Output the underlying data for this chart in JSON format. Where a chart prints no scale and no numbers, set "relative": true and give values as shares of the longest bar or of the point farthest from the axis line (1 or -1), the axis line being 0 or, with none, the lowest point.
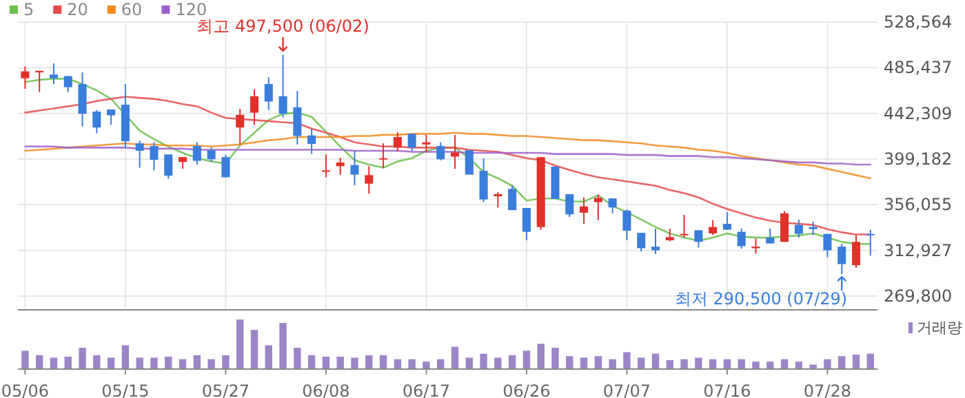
{
  "chart_data": [
    {
      "type": "candlestick",
      "categories": [
        null,
        null,
        null,
        null,
        null,
        null,
        null,
        null,
        null,
        null,
        null,
        null,
        null,
        null,
        null,
        null,
        null,
        null,
        null,
        null,
        null,
        null,
        null,
        null,
        null,
        null,
        null,
        null,
        null,
        null,
        null,
        null,
        null,
        null,
        null,
        null,
        null,
        null,
        null,
        null,
        null,
        null,
        null,
        null,
        null,
        null,
        null,
        null,
        null,
        null,
        null,
        null,
        null,
        null,
        null,
        null,
        null,
        null,
        null,
        null
      ],
      "ohlc": [
        [
          475500,
          486500,
          465500,
          482000
        ],
        [
          481000,
          482500,
          462500,
          482500
        ],
        [
          479000,
          489500,
          470000,
          475500
        ],
        [
          477500,
          477500,
          462500,
          467000
        ],
        [
          470000,
          481000,
          430000,
          442000
        ],
        [
          444000,
          445500,
          423500,
          429000
        ],
        [
          446000,
          446000,
          431500,
          440500
        ],
        [
          450500,
          470000,
          409500,
          416000
        ],
        [
          414000,
          416500,
          391000,
          407000
        ],
        [
          411500,
          415000,
          388500,
          398500
        ],
        [
          403500,
          403500,
          380500,
          383500
        ],
        [
          396500,
          401000,
          390000,
          401000
        ],
        [
          411500,
          415000,
          394000,
          397500
        ],
        [
          407500,
          410500,
          396500,
          399000
        ],
        [
          401000,
          403000,
          382000,
          382000
        ],
        [
          429000,
          446500,
          413000,
          441000
        ],
        [
          443000,
          465000,
          431500,
          458500
        ],
        [
          470000,
          476500,
          445500,
          453500
        ],
        [
          458500,
          497500,
          438500,
          442000
        ],
        [
          448000,
          463500,
          413000,
          421000
        ],
        [
          421500,
          428000,
          404000,
          413500
        ],
        [
          387500,
          403500,
          382000,
          388500
        ],
        [
          392500,
          400500,
          384500,
          396000
        ],
        [
          393500,
          407000,
          374500,
          384500
        ],
        [
          376000,
          392500,
          366500,
          384000
        ],
        [
          399000,
          414000,
          390500,
          400000
        ],
        [
          410000,
          424500,
          406500,
          420000
        ],
        [
          423000,
          423000,
          406500,
          410000
        ],
        [
          413000,
          422000,
          405500,
          415000
        ],
        [
          411500,
          415000,
          398000,
          399000
        ],
        [
          401500,
          422000,
          390000,
          405500
        ],
        [
          407500,
          407500,
          384500,
          384500
        ],
        [
          388000,
          400000,
          358500,
          361000
        ],
        [
          364000,
          368000,
          353500,
          366000
        ],
        [
          371000,
          374000,
          351000,
          351000
        ],
        [
          353000,
          353000,
          322500,
          330500
        ],
        [
          335000,
          401000,
          332500,
          401000
        ],
        [
          392000,
          392000,
          361500,
          361500
        ],
        [
          366000,
          366000,
          344500,
          347000
        ],
        [
          348500,
          363000,
          338000,
          354500
        ],
        [
          358500,
          365500,
          341500,
          362500
        ],
        [
          362000,
          362000,
          348000,
          353500
        ],
        [
          350500,
          351500,
          322500,
          331500
        ],
        [
          329500,
          329500,
          312000,
          315000
        ],
        [
          316500,
          333500,
          309500,
          313000
        ],
        [
          322500,
          333500,
          321500,
          325500
        ],
        [
          327500,
          346500,
          325000,
          328500
        ],
        [
          332000,
          332000,
          315500,
          321000
        ],
        [
          329000,
          341500,
          327500,
          335000
        ],
        [
          338000,
          349000,
          332500,
          332500
        ],
        [
          330500,
          333500,
          314500,
          317000
        ],
        [
          315000,
          324000,
          310000,
          316500
        ],
        [
          325000,
          333500,
          319500,
          319500
        ],
        [
          321000,
          350000,
          321000,
          348000
        ],
        [
          337000,
          342000,
          325000,
          328500
        ],
        [
          335000,
          340000,
          327500,
          333000
        ],
        [
          328500,
          328500,
          306500,
          313000
        ],
        [
          316500,
          319000,
          290500,
          300000
        ],
        [
          299000,
          327500,
          296500,
          321000
        ],
        [
          328500,
          332500,
          308000,
          327500
        ]
      ],
      "colors": [
        "#e0312b",
        "#e0312b",
        "#3a7ddc",
        "#3a7ddc",
        "#3a7ddc",
        "#3a7ddc",
        "#3a7ddc",
        "#3a7ddc",
        "#3a7ddc",
        "#3a7ddc",
        "#3a7ddc",
        "#e0312b",
        "#3a7ddc",
        "#3a7ddc",
        "#3a7ddc",
        "#e0312b",
        "#e0312b",
        "#3a7ddc",
        "#3a7ddc",
        "#3a7ddc",
        "#3a7ddc",
        "#e0312b",
        "#e0312b",
        "#3a7ddc",
        "#e0312b",
        "#e0312b",
        "#e0312b",
        "#3a7ddc",
        "#e0312b",
        "#3a7ddc",
        "#e0312b",
        "#3a7ddc",
        "#3a7ddc",
        "#e0312b",
        "#3a7ddc",
        "#3a7ddc",
        "#e0312b",
        "#3a7ddc",
        "#3a7ddc",
        "#e0312b",
        "#e0312b",
        "#3a7ddc",
        "#3a7ddc",
        "#3a7ddc",
        "#3a7ddc",
        "#e0312b",
        "#e0312b",
        "#3a7ddc",
        "#e0312b",
        "#3a7ddc",
        "#3a7ddc",
        "#e0312b",
        "#3a7ddc",
        "#e0312b",
        "#3a7ddc",
        "#3a7ddc",
        "#3a7ddc",
        "#3a7ddc",
        "#e0312b",
        "#3a7ddc"
      ],
      "series": [
        {
          "name": "5",
          "type": "line",
          "color": "#6abf4b",
          "values": [
            472000,
            474000,
            475000,
            475000,
            470000,
            464000,
            456000,
            441000,
            426000,
            418000,
            411000,
            405000,
            400000,
            397000,
            395000,
            412000,
            424000,
            436000,
            442000,
            443000,
            439000,
            425000,
            411000,
            398000,
            394000,
            391000,
            397000,
            400000,
            407000,
            410000,
            410000,
            400000,
            387000,
            381000,
            374000,
            360000,
            362000,
            362000,
            359000,
            359000,
            365000,
            355000,
            349000,
            342000,
            335000,
            329000,
            325000,
            322000,
            325000,
            329000,
            326000,
            325000,
            325000,
            326000,
            327000,
            329000,
            325000,
            321000,
            319000,
            319000
          ]
        },
        {
          "name": "20",
          "type": "line",
          "color": "#e8494b",
          "values": [
            443000,
            445000,
            447000,
            449000,
            451000,
            454000,
            456000,
            458000,
            457000,
            456000,
            454000,
            451000,
            449000,
            443000,
            438000,
            437000,
            436000,
            435000,
            434000,
            433000,
            428000,
            424000,
            420000,
            415000,
            413000,
            411000,
            411000,
            410000,
            410000,
            410000,
            410000,
            408000,
            407000,
            406000,
            403000,
            400000,
            398000,
            393000,
            389000,
            385000,
            382000,
            380000,
            378000,
            376000,
            374000,
            370000,
            367000,
            363000,
            357000,
            352000,
            348000,
            344000,
            341000,
            339000,
            338000,
            337000,
            333000,
            330000,
            328000,
            328000
          ]
        },
        {
          "name": "60",
          "type": "line",
          "color": "#f28a1e",
          "values": [
            407000,
            408000,
            409000,
            410000,
            411000,
            412000,
            413000,
            414000,
            413000,
            413000,
            412000,
            412000,
            412000,
            411000,
            412000,
            413000,
            415000,
            417000,
            418000,
            420000,
            420000,
            420000,
            420000,
            421000,
            421000,
            422000,
            422000,
            423000,
            423000,
            423000,
            424000,
            423000,
            423000,
            422000,
            421000,
            421000,
            420000,
            419000,
            418000,
            417000,
            417000,
            416000,
            415000,
            414000,
            412000,
            411000,
            410000,
            408000,
            407000,
            405000,
            402000,
            400000,
            398000,
            396000,
            394000,
            393000,
            390000,
            387000,
            384000,
            381000
          ]
        },
        {
          "name": "120",
          "type": "line",
          "color": "#9c5fc9",
          "values": [
            411000,
            411000,
            411000,
            410000,
            410000,
            410000,
            410000,
            410000,
            409000,
            409000,
            409000,
            409000,
            408000,
            408000,
            408000,
            408000,
            408000,
            408000,
            408000,
            408000,
            408000,
            408000,
            408000,
            407000,
            407000,
            407000,
            407000,
            406000,
            406000,
            406000,
            406000,
            405000,
            405000,
            405000,
            405000,
            405000,
            405000,
            404000,
            404000,
            404000,
            404000,
            404000,
            403000,
            403000,
            403000,
            402000,
            402000,
            402000,
            401000,
            401000,
            400000,
            399000,
            398000,
            397000,
            396000,
            396000,
            395000,
            395000,
            394000,
            394000
          ]
        }
      ],
      "ylim": [
        269800,
        528564
      ],
      "yticks": [
        {
          "value": 269800,
          "label": "269,800"
        },
        {
          "value": 312927,
          "label": "312,927"
        },
        {
          "value": 356055,
          "label": "356,055"
        },
        {
          "value": 399182,
          "label": "399,182"
        },
        {
          "value": 442309,
          "label": "442,309"
        },
        {
          "value": 485437,
          "label": "485,437"
        },
        {
          "value": 528564,
          "label": "528,564"
        }
      ],
      "grid": true,
      "legend": "top left",
      "tick_labels": "y",
      "annotations": [
        {
          "text": "최고 497,500 (06/02)",
          "y": 497500
        },
        "최저 290,500 (07/29)"
      ]
    },
    {
      "type": "bar",
      "relative": true,
      "categories": [
        "05/06",
        null,
        null,
        null,
        null,
        null,
        null,
        "05/15",
        null,
        null,
        null,
        null,
        null,
        null,
        "05/27",
        null,
        null,
        null,
        null,
        null,
        null,
        "06/08",
        null,
        null,
        null,
        null,
        null,
        null,
        "06/17",
        null,
        null,
        null,
        null,
        null,
        null,
        "06/26",
        null,
        null,
        null,
        null,
        null,
        null,
        "07/07",
        null,
        null,
        null,
        null,
        null,
        null,
        "07/16",
        null,
        null,
        null,
        null,
        null,
        null,
        "07/28",
        null,
        null,
        null
      ],
      "series": [
        {
          "name": "거래량",
          "color": "#9b85c7",
          "values": [
            0.37,
            0.28,
            0.23,
            0.25,
            0.43,
            0.28,
            0.23,
            0.48,
            0.23,
            0.23,
            0.25,
            0.2,
            0.28,
            0.2,
            0.28,
            1,
            0.79,
            0.48,
            0.93,
            0.43,
            0.28,
            0.25,
            0.25,
            0.23,
            0.28,
            0.28,
            0.2,
            0.2,
            0.15,
            0.2,
            0.45,
            0.23,
            0.31,
            0.23,
            0.28,
            0.37,
            0.51,
            0.43,
            0.26,
            0.23,
            0.26,
            0.2,
            0.34,
            0.23,
            0.31,
            0.18,
            0.2,
            0.23,
            0.2,
            0.2,
            0.2,
            0.15,
            0.15,
            0.2,
            0.15,
            0.09,
            0.2,
            0.26,
            0.29,
            0.31
          ]
        }
      ],
      "legend": "top right",
      "tick_labels": "x"
    }
  ]
}
